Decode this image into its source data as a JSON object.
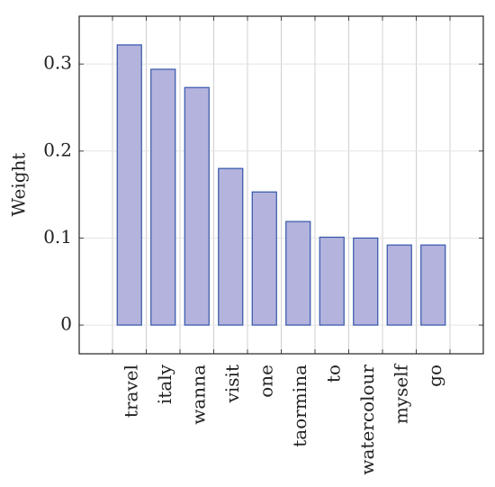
{
  "chart_data": {
    "type": "bar",
    "ylabel": "Weight",
    "categories": [
      "travel",
      "italy",
      "wanna",
      "visit",
      "one",
      "taormina",
      "to",
      "watercolour",
      "myself",
      "go"
    ],
    "values": [
      0.322,
      0.294,
      0.273,
      0.18,
      0.153,
      0.119,
      0.101,
      0.1,
      0.092,
      0.092
    ],
    "color": "#b3b3dd",
    "edge_color": "#3355aa",
    "ylim": [
      -0.033,
      0.355
    ],
    "yticks": [
      0,
      0.1,
      0.2,
      0.3
    ],
    "grid": true
  }
}
